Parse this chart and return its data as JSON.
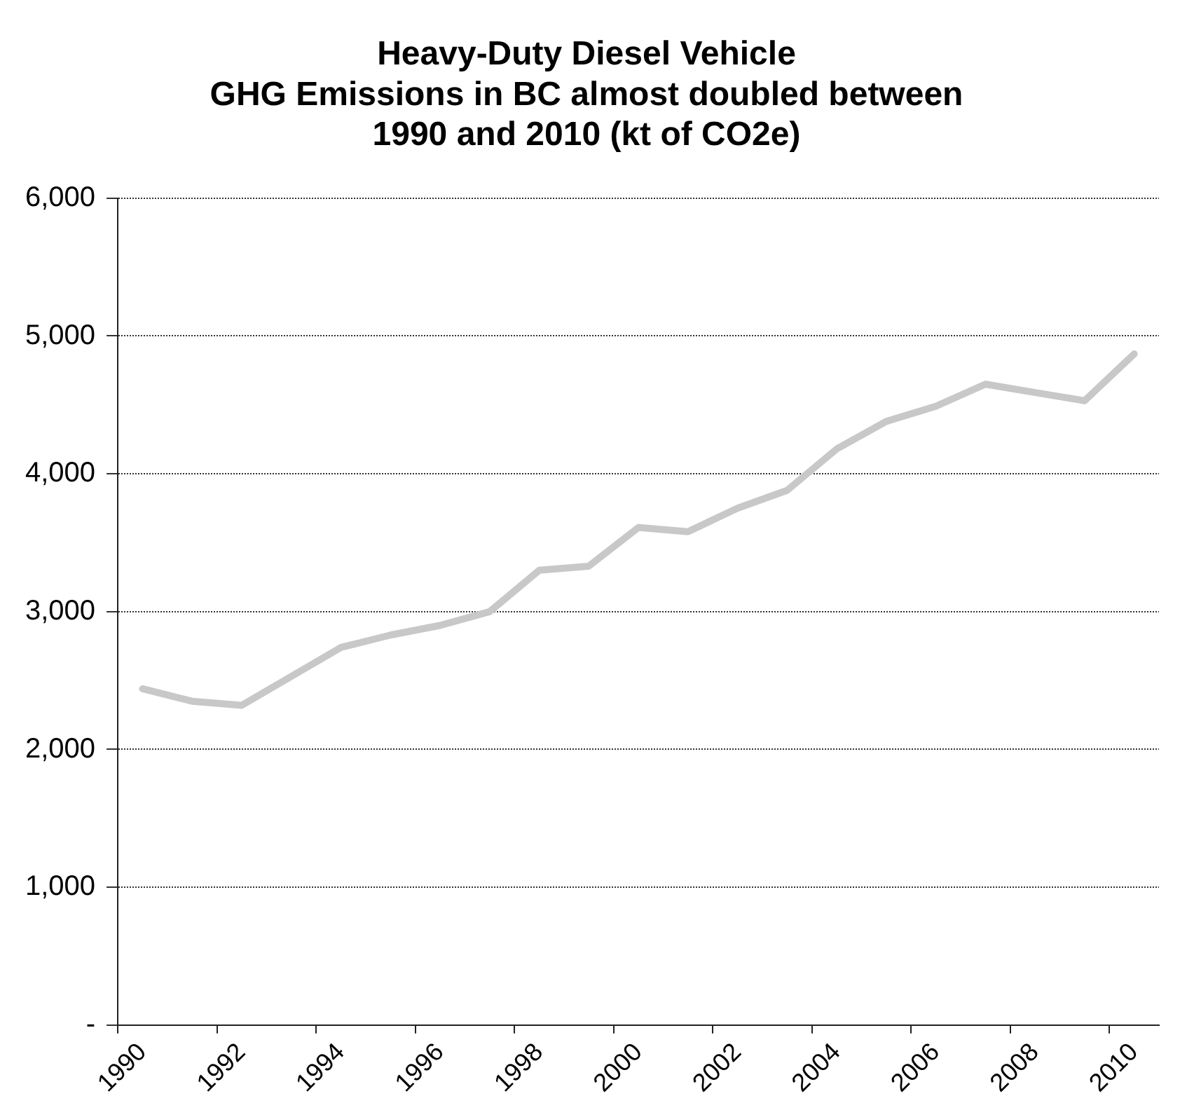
{
  "chart_data": {
    "type": "line",
    "title": [
      "Heavy-Duty Diesel Vehicle",
      "GHG Emissions in BC almost doubled between",
      "1990 and 2010 (kt of CO2e)"
    ],
    "categories": [
      "1990",
      null,
      "1992",
      null,
      "1994",
      null,
      "1996",
      null,
      "1998",
      null,
      "2000",
      null,
      "2002",
      null,
      "2004",
      null,
      "2006",
      null,
      "2008",
      null,
      "2010"
    ],
    "series": [
      {
        "color": "#c8c8c8",
        "values": [
          2440,
          2350,
          2320,
          2530,
          2740,
          2830,
          2900,
          3000,
          3300,
          3330,
          3610,
          3580,
          3750,
          3880,
          4180,
          4380,
          4490,
          4650,
          4590,
          4530,
          4870
        ]
      }
    ],
    "ylim": [
      0,
      6000
    ],
    "yticks": [
      {
        "value": 0,
        "label": "-"
      },
      {
        "value": 1000,
        "label": "1,000"
      },
      {
        "value": 2000,
        "label": "2,000"
      },
      {
        "value": 3000,
        "label": "3,000"
      },
      {
        "value": 4000,
        "label": "4,000"
      },
      {
        "value": 5000,
        "label": "5,000"
      },
      {
        "value": 6000,
        "label": "6,000"
      }
    ],
    "grid": "y",
    "marker": "none",
    "line_style": "solid"
  }
}
